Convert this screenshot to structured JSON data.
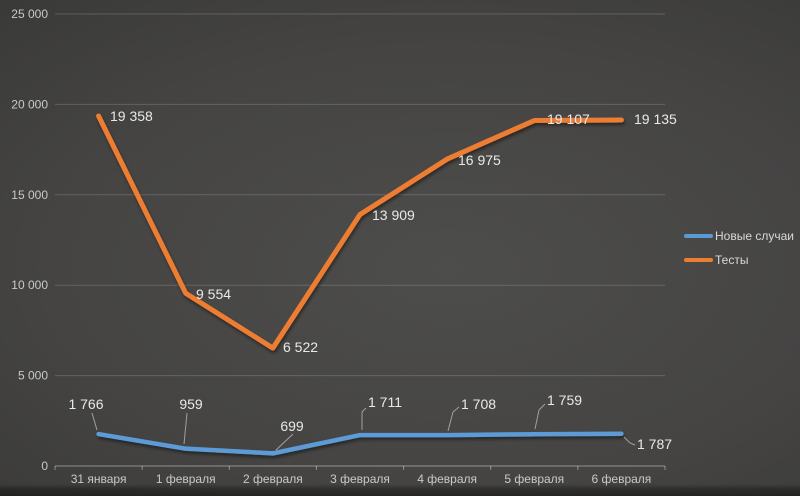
{
  "chart_data": {
    "type": "line",
    "title": "",
    "xlabel": "",
    "ylabel": "",
    "grid": true,
    "legend_position": "right",
    "ylim": [
      0,
      25000
    ],
    "y_ticks": [
      0,
      5000,
      10000,
      15000,
      20000,
      25000
    ],
    "y_tick_labels": [
      "0",
      "5 000",
      "10 000",
      "15 000",
      "20 000",
      "25 000"
    ],
    "categories": [
      "31 января",
      "1 февраля",
      "2 февраля",
      "3 февраля",
      "4 февраля",
      "5 февраля",
      "6 февраля"
    ],
    "series": [
      {
        "name": "Новые случаи",
        "color": "#5b9bd5",
        "values": [
          1766,
          959,
          699,
          1711,
          1708,
          1759,
          1787
        ],
        "labels": [
          "1 766",
          "959",
          "699",
          "1 711",
          "1 708",
          "1 759",
          "1 787"
        ]
      },
      {
        "name": "Тесты",
        "color": "#ed7d31",
        "values": [
          19358,
          9554,
          6522,
          13909,
          16975,
          19107,
          19135
        ],
        "labels": [
          "19 358",
          "9 554",
          "6 522",
          "13 909",
          "16 975",
          "19 107",
          "19 135"
        ]
      }
    ]
  }
}
